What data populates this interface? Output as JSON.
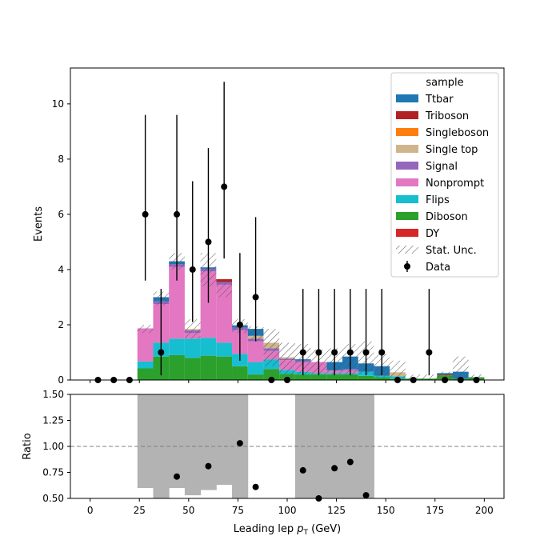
{
  "chart_data": {
    "type": "bar",
    "bin_edges": [
      0,
      8,
      16,
      24,
      32,
      40,
      48,
      56,
      64,
      72,
      80,
      88,
      96,
      104,
      112,
      120,
      128,
      136,
      144,
      152,
      160,
      168,
      176,
      184,
      192,
      200
    ],
    "stack_order": [
      "DY",
      "Diboson",
      "Flips",
      "Nonprompt",
      "Signal",
      "Single top",
      "Singleboson",
      "Triboson",
      "Ttbar"
    ],
    "series": [
      {
        "name": "Ttbar",
        "color": "#1f77b4",
        "values": [
          0,
          0,
          0,
          0,
          0.15,
          0.1,
          0,
          0.05,
          0,
          0.08,
          0.25,
          0,
          0,
          0.05,
          0,
          0.3,
          0.45,
          0.3,
          0.35,
          0,
          0,
          0,
          0.05,
          0.25,
          0
        ]
      },
      {
        "name": "Triboson",
        "color": "#b22222",
        "values": [
          0,
          0,
          0,
          0,
          0,
          0,
          0,
          0,
          0.1,
          0,
          0,
          0,
          0,
          0,
          0,
          0,
          0,
          0,
          0,
          0,
          0,
          0,
          0.03,
          0,
          0
        ]
      },
      {
        "name": "Singleboson",
        "color": "#ff7f0e",
        "values": [
          0,
          0,
          0,
          0,
          0,
          0,
          0,
          0,
          0,
          0,
          0,
          0,
          0,
          0,
          0,
          0,
          0,
          0,
          0,
          0,
          0,
          0,
          0,
          0,
          0
        ]
      },
      {
        "name": "Single top",
        "color": "#d2b48c",
        "values": [
          0,
          0,
          0,
          0,
          0,
          0,
          0.05,
          0,
          0,
          0,
          0.1,
          0.2,
          0.05,
          0,
          0,
          0,
          0,
          0,
          0,
          0.15,
          0,
          0,
          0,
          0,
          0
        ]
      },
      {
        "name": "Signal",
        "color": "#9467bd",
        "values": [
          0,
          0,
          0,
          0,
          0.1,
          0.1,
          0.1,
          0.1,
          0.1,
          0.1,
          0.1,
          0.1,
          0.05,
          0.05,
          0,
          0,
          0.05,
          0,
          0,
          0,
          0,
          0,
          0,
          0,
          0
        ]
      },
      {
        "name": "Nonprompt",
        "color": "#e377c2",
        "values": [
          0,
          0,
          0,
          1.2,
          1.4,
          2.6,
          0.2,
          2.4,
          2.1,
          0.85,
          0.75,
          0.3,
          0.35,
          0.35,
          0.4,
          0.1,
          0.1,
          0,
          0,
          0,
          0,
          0,
          0,
          0,
          0
        ]
      },
      {
        "name": "Flips",
        "color": "#17becf",
        "values": [
          0,
          0,
          0,
          0.25,
          0.5,
          0.6,
          0.7,
          0.65,
          0.5,
          0.45,
          0.45,
          0.35,
          0.15,
          0.1,
          0.05,
          0.05,
          0.05,
          0.15,
          0.05,
          0.08,
          0,
          0,
          0,
          0,
          0
        ]
      },
      {
        "name": "Diboson",
        "color": "#2ca02c",
        "values": [
          0,
          0,
          0,
          0.42,
          0.85,
          0.9,
          0.8,
          0.88,
          0.85,
          0.5,
          0.2,
          0.4,
          0.22,
          0.2,
          0.2,
          0.2,
          0.2,
          0.15,
          0.1,
          0.05,
          0.05,
          0.05,
          0.15,
          0.05,
          0.1
        ]
      },
      {
        "name": "DY",
        "color": "#d62728",
        "values": [
          0,
          0,
          0,
          0,
          0,
          0,
          0,
          0,
          0,
          0,
          0,
          0,
          0,
          0,
          0,
          0,
          0,
          0,
          0,
          0,
          0,
          0,
          0.02,
          0,
          0
        ]
      }
    ],
    "stat_unc_total": [
      0,
      0,
      0,
      2.0,
      3.2,
      4.6,
      2.2,
      4.6,
      3.5,
      2.2,
      1.95,
      1.85,
      1.35,
      1.3,
      1.1,
      1.15,
      1.3,
      1.4,
      0.95,
      0.7,
      0.2,
      0.2,
      0.3,
      0.85,
      0.2
    ],
    "stat_unc_low": [
      0,
      0,
      0,
      1.7,
      2.7,
      4.0,
      1.5,
      3.4,
      3.0,
      1.7,
      1.4,
      0.5,
      0.2,
      0.2,
      0.2,
      0.2,
      0.2,
      0.2,
      0.1,
      0,
      0,
      0,
      0,
      0,
      0
    ],
    "data": {
      "name": "Data",
      "x": [
        4,
        12,
        20,
        28,
        36,
        44,
        52,
        60,
        68,
        76,
        84,
        92,
        100,
        108,
        116,
        124,
        132,
        140,
        148,
        156,
        164,
        172,
        180,
        188,
        196
      ],
      "y": [
        0,
        0,
        0,
        6,
        1,
        6,
        4,
        5,
        7,
        2,
        3,
        0,
        0,
        1,
        1,
        1,
        1,
        1,
        1,
        0,
        0,
        1,
        0,
        0,
        0
      ],
      "err_high": [
        0,
        0,
        0,
        3.6,
        2.3,
        3.6,
        3.2,
        3.4,
        3.8,
        2.6,
        2.9,
        0,
        0,
        2.3,
        2.3,
        2.3,
        2.3,
        2.3,
        2.3,
        0,
        0,
        2.3,
        0,
        0,
        0
      ],
      "err_low": [
        0,
        0,
        0,
        2.4,
        0.83,
        2.4,
        1.9,
        2.2,
        2.6,
        1.3,
        1.6,
        0,
        0,
        0.83,
        0.83,
        0.83,
        0.83,
        0.83,
        0.83,
        0,
        0,
        0.83,
        0,
        0,
        0
      ]
    },
    "ylabel": "Events",
    "ylim": [
      0,
      11.3
    ],
    "yticks": [
      0,
      2,
      4,
      6,
      8,
      10
    ],
    "xlim": [
      -10,
      210
    ],
    "xticks": [
      0,
      25,
      50,
      75,
      100,
      125,
      150,
      175,
      200
    ],
    "xlabel_prefix": "Leading lep ",
    "xlabel_var": "p",
    "xlabel_sub": "T",
    "xlabel_suffix": " (GeV)",
    "legend": {
      "title": "sample",
      "placement": "top-right",
      "entries": [
        "Ttbar",
        "Triboson",
        "Singleboson",
        "Single top",
        "Signal",
        "Nonprompt",
        "Flips",
        "Diboson",
        "DY",
        "Stat. Unc.",
        "Data"
      ]
    },
    "ratio": {
      "ylabel": "Ratio",
      "ylim": [
        0.5,
        1.5
      ],
      "yticks": [
        0.5,
        0.75,
        1.0,
        1.25,
        1.5
      ],
      "ytick_labels": [
        "0.50",
        "0.75",
        "1.00",
        "1.25",
        "1.50"
      ],
      "reference_line": 1.0,
      "band_lo": [
        null,
        null,
        null,
        0.6,
        0.5,
        0.6,
        0.53,
        0.58,
        0.63,
        0.5,
        null,
        null,
        null,
        0.5,
        0.5,
        0.5,
        0.5,
        0.5,
        null,
        null,
        null,
        null,
        null,
        null,
        null
      ],
      "band_hi": [
        null,
        null,
        null,
        1.5,
        1.5,
        1.5,
        1.5,
        1.5,
        1.5,
        1.5,
        null,
        null,
        null,
        1.5,
        1.5,
        1.5,
        1.5,
        1.5,
        null,
        null,
        null,
        null,
        null,
        null,
        null
      ],
      "points_x": [
        44,
        60,
        76,
        84,
        108,
        116,
        124,
        132,
        140
      ],
      "points_y": [
        0.71,
        0.81,
        1.03,
        0.61,
        0.77,
        0.5,
        0.79,
        0.85,
        0.53
      ]
    },
    "grid": false
  }
}
